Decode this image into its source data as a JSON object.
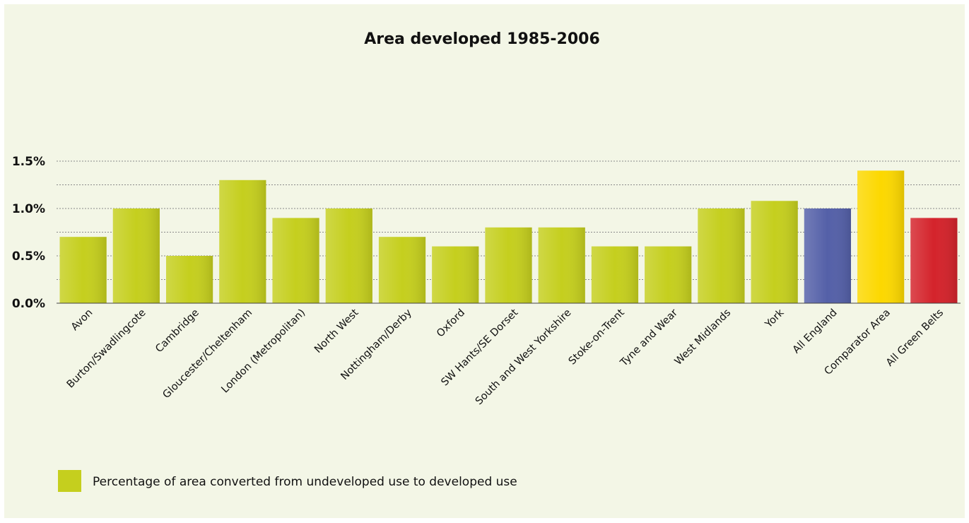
{
  "chart_data": {
    "type": "bar",
    "title": "Area developed 1985-2006",
    "xlabel": "",
    "ylabel": "",
    "ylim": [
      0,
      1.5
    ],
    "yticks": [
      0.0,
      0.5,
      1.0,
      1.5
    ],
    "ytick_labels": [
      "0.0%",
      "0.5%",
      "1.0%",
      "1.5%"
    ],
    "grid": true,
    "categories": [
      "Avon",
      "Burton/Swadlingcote",
      "Cambridge",
      "Gloucester/Cheltenham",
      "London (Metropolitan)",
      "North West",
      "Nottingham/Derby",
      "Oxford",
      "SW Hants/SE Dorset",
      "South and West Yorkshire",
      "Stoke-on-Trent",
      "Tyne and Wear",
      "West Midlands",
      "York",
      "All England",
      "Comparator Area",
      "All Green Belts"
    ],
    "values": [
      0.7,
      1.0,
      0.5,
      1.3,
      0.9,
      1.0,
      0.7,
      0.6,
      0.8,
      0.8,
      0.6,
      0.6,
      1.0,
      1.08,
      1.0,
      1.4,
      0.9
    ],
    "bar_colors": [
      "#c5cf1e",
      "#c5cf1e",
      "#c5cf1e",
      "#c5cf1e",
      "#c5cf1e",
      "#c5cf1e",
      "#c5cf1e",
      "#c5cf1e",
      "#c5cf1e",
      "#c5cf1e",
      "#c5cf1e",
      "#c5cf1e",
      "#c5cf1e",
      "#c5cf1e",
      "#5460a8",
      "#fcd800",
      "#d4232b"
    ],
    "legend": {
      "position": "bottom-left",
      "entries": [
        {
          "label": "Percentage of area converted from undeveloped use to developed use",
          "color": "#c5cf1e"
        }
      ]
    }
  }
}
